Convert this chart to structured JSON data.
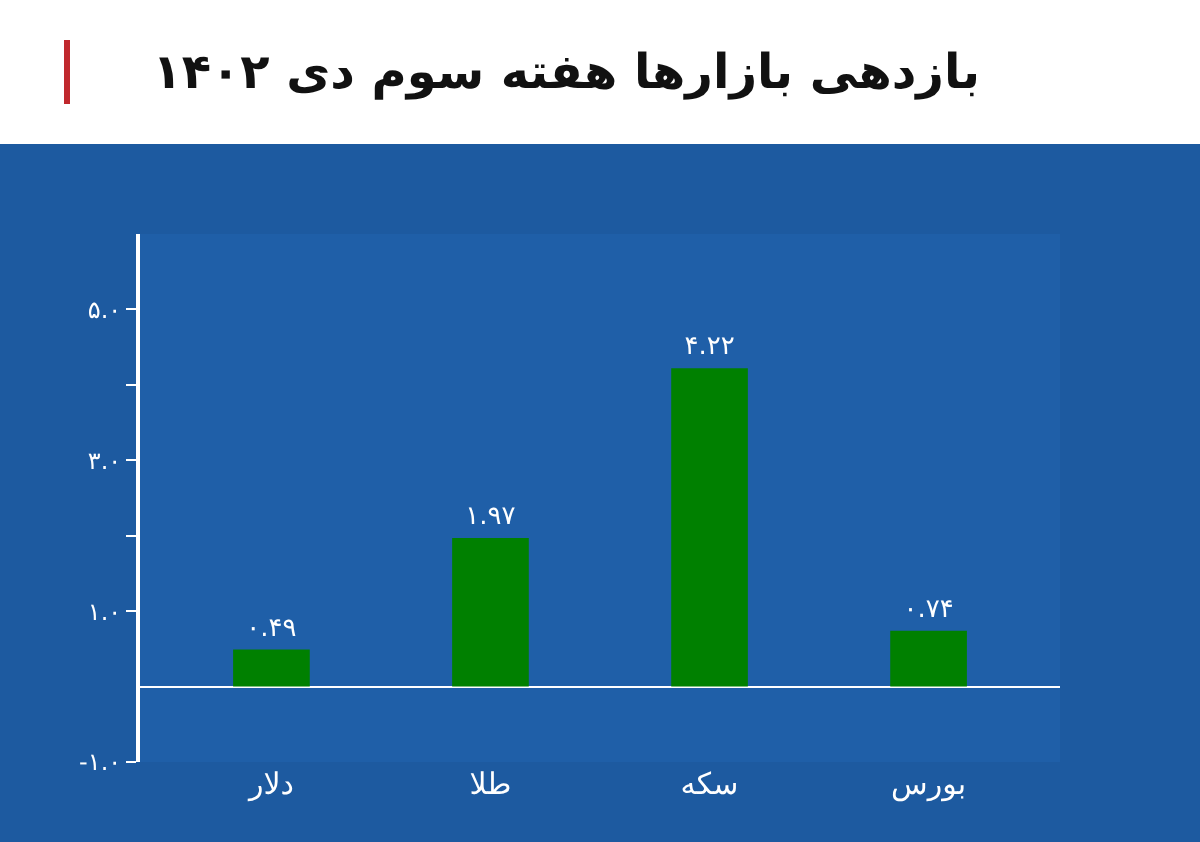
{
  "chart_data": {
    "type": "bar",
    "title": "بازدهی بازارها هفته سوم دی ۱۴۰۲",
    "categories": [
      "دلار",
      "طلا",
      "سکه",
      "بورس"
    ],
    "values": [
      0.49,
      1.97,
      4.22,
      0.74
    ],
    "value_labels": [
      "۰.۴۹",
      "۱.۹۷",
      "۴.۲۲",
      "۰.۷۴"
    ],
    "color": "#008000",
    "ylim": [
      -1,
      6
    ],
    "yticks": [
      {
        "value": 5,
        "label": "۵.۰"
      },
      {
        "value": 4,
        "label": null
      },
      {
        "value": 3,
        "label": "۳.۰"
      },
      {
        "value": 2,
        "label": null
      },
      {
        "value": 1,
        "label": "۱.۰"
      },
      {
        "value": -1,
        "label": "-۱.۰"
      }
    ],
    "grid": false
  }
}
